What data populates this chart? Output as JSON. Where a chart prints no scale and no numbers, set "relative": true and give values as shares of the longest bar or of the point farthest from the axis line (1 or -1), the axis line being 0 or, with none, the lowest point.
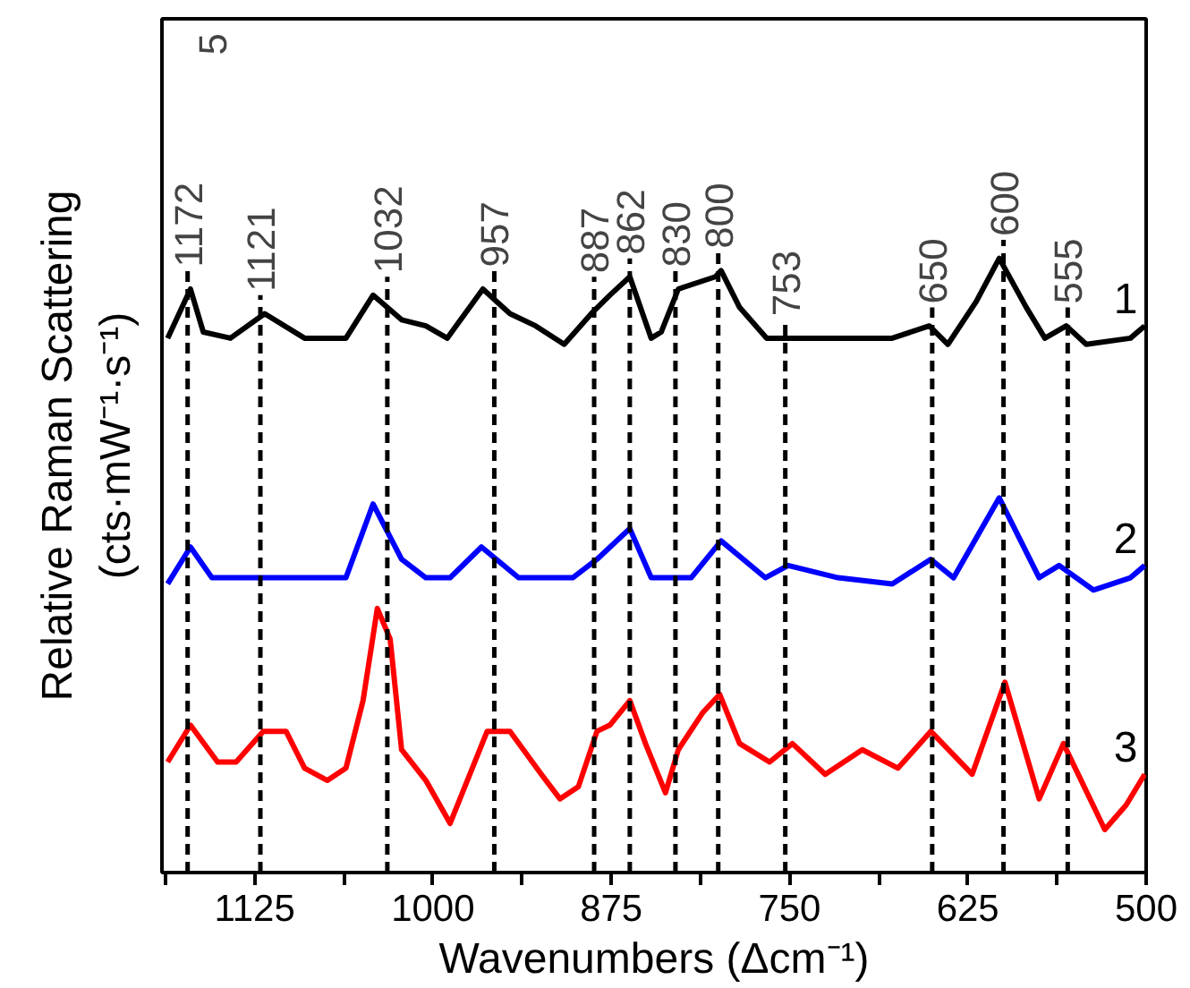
{
  "chart_data": {
    "type": "line",
    "relative": true,
    "xlabel": "Wavenumbers (Δcm⁻¹)",
    "ylabel": "Relative Raman Scattering\n(cts·mW⁻¹·s⁻¹)",
    "xlim": [
      1190,
      500
    ],
    "xticks": [
      {
        "value": 1187.5,
        "label": null
      },
      1125,
      {
        "value": 1062.5,
        "label": null
      },
      1000,
      {
        "value": 937.5,
        "label": null
      },
      875,
      {
        "value": 812.5,
        "label": null
      },
      750,
      {
        "value": 687.5,
        "label": null
      },
      625,
      {
        "value": 562.5,
        "label": null
      },
      500
    ],
    "legend": false,
    "grid": false,
    "marker": "none",
    "line_style": "solid",
    "series": [
      {
        "name": "1",
        "color": "#000000",
        "x": [
          1186,
          1170,
          1161,
          1142,
          1118,
          1090,
          1061,
          1042,
          1022,
          1005,
          990,
          965,
          946,
          928,
          908,
          889,
          876,
          862,
          847,
          840,
          828,
          802,
          798,
          785,
          766,
          729,
          678,
          652,
          639,
          619,
          603,
          584,
          571,
          556,
          542,
          511,
          501
        ],
        "values": [
          0.87,
          0.95,
          0.88,
          0.87,
          0.91,
          0.87,
          0.87,
          0.94,
          0.9,
          0.89,
          0.87,
          0.95,
          0.91,
          0.89,
          0.86,
          0.91,
          0.94,
          0.97,
          0.87,
          0.88,
          0.95,
          0.97,
          0.98,
          0.92,
          0.87,
          0.87,
          0.87,
          0.89,
          0.86,
          0.93,
          1.0,
          0.92,
          0.87,
          0.89,
          0.86,
          0.87,
          0.89
        ]
      },
      {
        "name": "2",
        "color": "#0000ff",
        "x": [
          1186,
          1170,
          1155,
          1119,
          1061,
          1042,
          1022,
          1005,
          988,
          966,
          940,
          902,
          885,
          862,
          847,
          840,
          819,
          798,
          767,
          751,
          716,
          678,
          651,
          635,
          603,
          575,
          561,
          537,
          511,
          501
        ],
        "values": [
          0.47,
          0.53,
          0.48,
          0.48,
          0.48,
          0.6,
          0.51,
          0.48,
          0.48,
          0.53,
          0.48,
          0.48,
          0.51,
          0.56,
          0.48,
          0.48,
          0.48,
          0.54,
          0.48,
          0.5,
          0.48,
          0.47,
          0.51,
          0.48,
          0.61,
          0.48,
          0.5,
          0.46,
          0.48,
          0.5
        ]
      },
      {
        "name": "3",
        "color": "#ff0000",
        "x": [
          1186,
          1170,
          1151,
          1138,
          1119,
          1103,
          1090,
          1074,
          1061,
          1049,
          1039,
          1030,
          1022,
          1005,
          988,
          962,
          946,
          924,
          911,
          898,
          885,
          876,
          862,
          851,
          837,
          828,
          811,
          799,
          785,
          764,
          748,
          725,
          699,
          674,
          651,
          622,
          599,
          575,
          558,
          529,
          514,
          501
        ],
        "values": [
          0.18,
          0.24,
          0.18,
          0.18,
          0.23,
          0.23,
          0.17,
          0.15,
          0.17,
          0.28,
          0.43,
          0.38,
          0.2,
          0.15,
          0.08,
          0.23,
          0.23,
          0.16,
          0.12,
          0.14,
          0.23,
          0.24,
          0.28,
          0.21,
          0.13,
          0.2,
          0.26,
          0.29,
          0.21,
          0.18,
          0.21,
          0.16,
          0.2,
          0.17,
          0.23,
          0.16,
          0.31,
          0.12,
          0.21,
          0.07,
          0.11,
          0.16
        ]
      }
    ],
    "ref_lines": [
      {
        "axis": "x",
        "value": 1172,
        "label": "1172",
        "color": "#000000",
        "line_style": "dashed"
      },
      {
        "axis": "x",
        "value": 1121,
        "label": "1121",
        "color": "#000000",
        "line_style": "dashed"
      },
      {
        "axis": "x",
        "value": 1032,
        "label": "1032",
        "color": "#000000",
        "line_style": "dashed"
      },
      {
        "axis": "x",
        "value": 957,
        "label": "957",
        "color": "#000000",
        "line_style": "dashed"
      },
      {
        "axis": "x",
        "value": 887,
        "label": "887",
        "color": "#000000",
        "line_style": "dashed"
      },
      {
        "axis": "x",
        "value": 862,
        "label": "862",
        "color": "#000000",
        "line_style": "dashed"
      },
      {
        "axis": "x",
        "value": 830,
        "label": "830",
        "color": "#000000",
        "line_style": "dashed"
      },
      {
        "axis": "x",
        "value": 800,
        "label": "800",
        "color": "#000000",
        "line_style": "dashed"
      },
      {
        "axis": "x",
        "value": 753,
        "label": "753",
        "color": "#000000",
        "line_style": "dashed"
      },
      {
        "axis": "x",
        "value": 650,
        "label": "650",
        "color": "#000000",
        "line_style": "dashed"
      },
      {
        "axis": "x",
        "value": 600,
        "label": "600",
        "color": "#000000",
        "line_style": "dashed"
      },
      {
        "axis": "x",
        "value": 555,
        "label": "555",
        "color": "#000000",
        "line_style": "dashed"
      }
    ],
    "annotations": [
      "5"
    ]
  }
}
